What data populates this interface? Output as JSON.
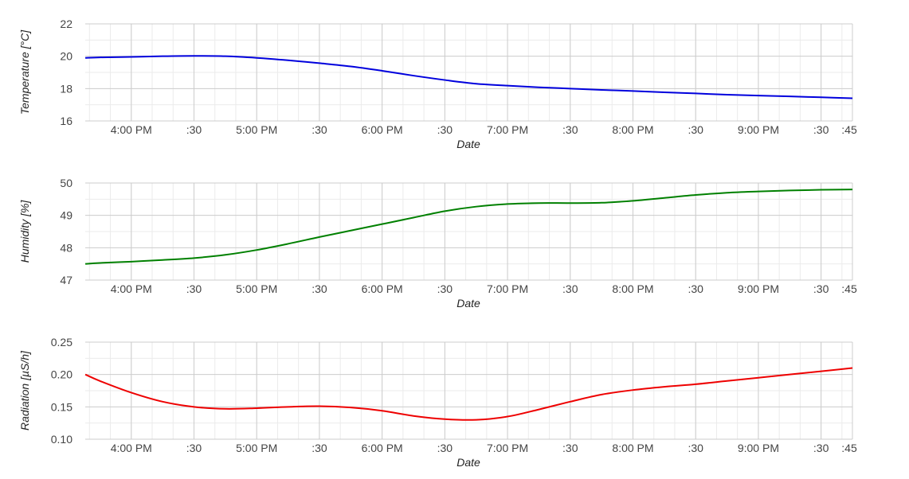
{
  "chart_data": [
    {
      "type": "line",
      "xlabel": "Date",
      "ylabel": "Temperature [°C]",
      "xlim": [
        15.633,
        21.75
      ],
      "ylim": [
        16,
        22
      ],
      "yticks": [
        "16",
        "18",
        "20",
        "22"
      ],
      "xticks": [
        {
          "t": 16.0,
          "label": "4:00 PM"
        },
        {
          "t": 16.5,
          "label": ":30"
        },
        {
          "t": 17.0,
          "label": "5:00 PM"
        },
        {
          "t": 17.5,
          "label": ":30"
        },
        {
          "t": 18.0,
          "label": "6:00 PM"
        },
        {
          "t": 18.5,
          "label": ":30"
        },
        {
          "t": 19.0,
          "label": "7:00 PM"
        },
        {
          "t": 19.5,
          "label": ":30"
        },
        {
          "t": 20.0,
          "label": "8:00 PM"
        },
        {
          "t": 20.5,
          "label": ":30"
        },
        {
          "t": 21.0,
          "label": "9:00 PM"
        },
        {
          "t": 21.5,
          "label": ":30"
        },
        {
          "t": 21.75,
          "label": ":45"
        }
      ],
      "color": "#0000dd",
      "series": [
        {
          "x": [
            "15:38",
            "15:45",
            "16:00",
            "16:15",
            "16:30",
            "16:45",
            "17:00",
            "17:15",
            "17:30",
            "17:45",
            "18:00",
            "18:15",
            "18:30",
            "18:45",
            "19:00",
            "19:15",
            "19:30",
            "19:45",
            "20:00",
            "20:15",
            "20:30",
            "20:45",
            "21:00",
            "21:15",
            "21:30",
            "21:45"
          ],
          "values": [
            19.9,
            19.93,
            19.96,
            20.0,
            20.02,
            20.0,
            19.9,
            19.75,
            19.57,
            19.37,
            19.1,
            18.8,
            18.53,
            18.3,
            18.18,
            18.08,
            18.0,
            17.92,
            17.85,
            17.77,
            17.7,
            17.62,
            17.57,
            17.52,
            17.46,
            17.4
          ]
        }
      ]
    },
    {
      "type": "line",
      "xlabel": "Date",
      "ylabel": "Humidity [%]",
      "xlim": [
        15.633,
        21.75
      ],
      "ylim": [
        47,
        50
      ],
      "yticks": [
        "47",
        "48",
        "49",
        "50"
      ],
      "xticks": [
        {
          "t": 16.0,
          "label": "4:00 PM"
        },
        {
          "t": 16.5,
          "label": ":30"
        },
        {
          "t": 17.0,
          "label": "5:00 PM"
        },
        {
          "t": 17.5,
          "label": ":30"
        },
        {
          "t": 18.0,
          "label": "6:00 PM"
        },
        {
          "t": 18.5,
          "label": ":30"
        },
        {
          "t": 19.0,
          "label": "7:00 PM"
        },
        {
          "t": 19.5,
          "label": ":30"
        },
        {
          "t": 20.0,
          "label": "8:00 PM"
        },
        {
          "t": 20.5,
          "label": ":30"
        },
        {
          "t": 21.0,
          "label": "9:00 PM"
        },
        {
          "t": 21.5,
          "label": ":30"
        },
        {
          "t": 21.75,
          "label": ":45"
        }
      ],
      "color": "#008000",
      "series": [
        {
          "x": [
            "15:38",
            "15:45",
            "16:00",
            "16:15",
            "16:30",
            "16:45",
            "17:00",
            "17:15",
            "17:30",
            "17:45",
            "18:00",
            "18:15",
            "18:30",
            "18:45",
            "19:00",
            "19:15",
            "19:30",
            "19:45",
            "20:00",
            "20:15",
            "20:30",
            "20:45",
            "21:00",
            "21:15",
            "21:30",
            "21:45"
          ],
          "values": [
            47.5,
            47.53,
            47.57,
            47.62,
            47.68,
            47.78,
            47.93,
            48.12,
            48.33,
            48.53,
            48.73,
            48.93,
            49.13,
            49.27,
            49.35,
            49.38,
            49.38,
            49.39,
            49.45,
            49.54,
            49.63,
            49.7,
            49.74,
            49.77,
            49.79,
            49.8
          ]
        }
      ]
    },
    {
      "type": "line",
      "xlabel": "Date",
      "ylabel": "Radiation [µS/h]",
      "xlim": [
        15.633,
        21.75
      ],
      "ylim": [
        0.1,
        0.25
      ],
      "yticks": [
        "0.10",
        "0.15",
        "0.20",
        "0.25"
      ],
      "xticks": [
        {
          "t": 16.0,
          "label": "4:00 PM"
        },
        {
          "t": 16.5,
          "label": ":30"
        },
        {
          "t": 17.0,
          "label": "5:00 PM"
        },
        {
          "t": 17.5,
          "label": ":30"
        },
        {
          "t": 18.0,
          "label": "6:00 PM"
        },
        {
          "t": 18.5,
          "label": ":30"
        },
        {
          "t": 19.0,
          "label": "7:00 PM"
        },
        {
          "t": 19.5,
          "label": ":30"
        },
        {
          "t": 20.0,
          "label": "8:00 PM"
        },
        {
          "t": 20.5,
          "label": ":30"
        },
        {
          "t": 21.0,
          "label": "9:00 PM"
        },
        {
          "t": 21.5,
          "label": ":30"
        },
        {
          "t": 21.75,
          "label": ":45"
        }
      ],
      "color": "#ee0000",
      "series": [
        {
          "x": [
            "15:38",
            "15:45",
            "16:00",
            "16:15",
            "16:30",
            "16:45",
            "17:00",
            "17:15",
            "17:30",
            "17:45",
            "18:00",
            "18:15",
            "18:30",
            "18:45",
            "19:00",
            "19:15",
            "19:30",
            "19:45",
            "20:00",
            "20:15",
            "20:30",
            "20:45",
            "21:00",
            "21:15",
            "21:30",
            "21:45"
          ],
          "values": [
            0.2,
            0.19,
            0.172,
            0.158,
            0.15,
            0.147,
            0.148,
            0.15,
            0.151,
            0.149,
            0.144,
            0.136,
            0.131,
            0.13,
            0.135,
            0.146,
            0.158,
            0.169,
            0.176,
            0.181,
            0.185,
            0.19,
            0.195,
            0.2,
            0.205,
            0.21
          ]
        }
      ]
    }
  ]
}
